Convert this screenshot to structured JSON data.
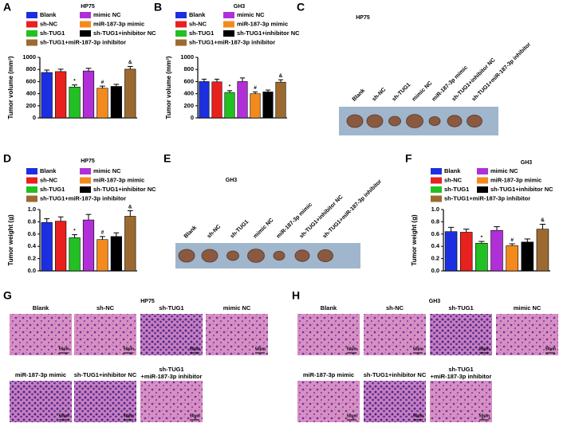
{
  "panels": [
    "A",
    "B",
    "C",
    "D",
    "E",
    "F",
    "G",
    "H"
  ],
  "chart_data": [
    {
      "type": "bar",
      "title": "HP75",
      "y_label": "Tumor volume (mm³)",
      "ylim": [
        0,
        1000
      ],
      "yticks": [
        0,
        200,
        400,
        600,
        800,
        1000
      ],
      "series": [
        {
          "name": "Blank",
          "color": "#1c2fe0",
          "values": [
            750
          ],
          "errors": [
            40
          ]
        },
        {
          "name": "sh-NC",
          "color": "#e8201e",
          "values": [
            765
          ],
          "errors": [
            40
          ]
        },
        {
          "name": "sh-TUG1",
          "color": "#22c022",
          "values": [
            510
          ],
          "errors": [
            35
          ],
          "annotation": "*"
        },
        {
          "name": "mimic NC",
          "color": "#b030d8",
          "values": [
            775
          ],
          "errors": [
            45
          ]
        },
        {
          "name": "miR-187-3p mimic",
          "color": "#f58a1c",
          "values": [
            490
          ],
          "errors": [
            35
          ],
          "annotation": "#"
        },
        {
          "name": "sh-TUG1+inhibitor NC",
          "color": "#000000",
          "values": [
            520
          ],
          "errors": [
            35
          ]
        },
        {
          "name": "sh-TUG1+miR-187-3p inhibitor",
          "color": "#9c6a30",
          "values": [
            805
          ],
          "errors": [
            45
          ],
          "annotation": "&"
        }
      ]
    },
    {
      "type": "bar",
      "title": "GH3",
      "y_label": "Tumor volume (mm³)",
      "ylim": [
        0,
        1000
      ],
      "yticks": [
        0,
        200,
        400,
        600,
        800,
        1000
      ],
      "series": [
        {
          "name": "Blank",
          "color": "#1c2fe0",
          "values": [
            600
          ],
          "errors": [
            40
          ]
        },
        {
          "name": "sh-NC",
          "color": "#e8201e",
          "values": [
            595
          ],
          "errors": [
            45
          ]
        },
        {
          "name": "sh-TUG1",
          "color": "#22c022",
          "values": [
            420
          ],
          "errors": [
            30
          ],
          "annotation": "*"
        },
        {
          "name": "mimic NC",
          "color": "#b030d8",
          "values": [
            600
          ],
          "errors": [
            60
          ]
        },
        {
          "name": "miR-187-3p mimic",
          "color": "#f58a1c",
          "values": [
            400
          ],
          "errors": [
            30
          ],
          "annotation": "#"
        },
        {
          "name": "sh-TUG1+inhibitor NC",
          "color": "#000000",
          "values": [
            430
          ],
          "errors": [
            30
          ]
        },
        {
          "name": "sh-TUG1+miR-187-3p inhibitor",
          "color": "#9c6a30",
          "values": [
            590
          ],
          "errors": [
            40
          ],
          "annotation": "&"
        }
      ]
    },
    {
      "type": "bar",
      "title": "HP75",
      "y_label": "Tumor weight (g)",
      "ylim": [
        0,
        1
      ],
      "yticks": [
        {
          "value": 0,
          "label": "0.0"
        },
        0.2,
        0.4,
        0.6,
        0.8,
        {
          "value": 1,
          "label": "1.0"
        }
      ],
      "series": [
        {
          "name": "Blank",
          "color": "#1c2fe0",
          "values": [
            0.79
          ],
          "errors": [
            0.06
          ]
        },
        {
          "name": "sh-NC",
          "color": "#e8201e",
          "values": [
            0.81
          ],
          "errors": [
            0.07
          ]
        },
        {
          "name": "sh-TUG1",
          "color": "#22c022",
          "values": [
            0.54
          ],
          "errors": [
            0.05
          ],
          "annotation": "*"
        },
        {
          "name": "mimic NC",
          "color": "#b030d8",
          "values": [
            0.83
          ],
          "errors": [
            0.09
          ]
        },
        {
          "name": "miR-187-3p mimic",
          "color": "#f58a1c",
          "values": [
            0.51
          ],
          "errors": [
            0.05
          ],
          "annotation": "#"
        },
        {
          "name": "sh-TUG1+inhibitor NC",
          "color": "#000000",
          "values": [
            0.56
          ],
          "errors": [
            0.06
          ]
        },
        {
          "name": "sh-TUG1+miR-187-3p inhibitor",
          "color": "#9c6a30",
          "values": [
            0.89
          ],
          "errors": [
            0.09
          ],
          "annotation": "&"
        }
      ]
    },
    {
      "type": "bar",
      "title": "GH3",
      "y_label": "Tumor weight (g)",
      "ylim": [
        0,
        1
      ],
      "yticks": [
        {
          "value": 0,
          "label": "0.0"
        },
        0.2,
        0.4,
        0.6,
        0.8,
        {
          "value": 1,
          "label": "1.0"
        }
      ],
      "series": [
        {
          "name": "Blank",
          "color": "#1c2fe0",
          "values": [
            0.64
          ],
          "errors": [
            0.07
          ]
        },
        {
          "name": "sh-NC",
          "color": "#e8201e",
          "values": [
            0.63
          ],
          "errors": [
            0.05
          ]
        },
        {
          "name": "sh-TUG1",
          "color": "#22c022",
          "values": [
            0.45
          ],
          "errors": [
            0.03
          ],
          "annotation": "*"
        },
        {
          "name": "mimic NC",
          "color": "#b030d8",
          "values": [
            0.66
          ],
          "errors": [
            0.06
          ]
        },
        {
          "name": "miR-187-3p mimic",
          "color": "#f58a1c",
          "values": [
            0.41
          ],
          "errors": [
            0.03
          ],
          "annotation": "#"
        },
        {
          "name": "sh-TUG1+inhibitor NC",
          "color": "#000000",
          "values": [
            0.47
          ],
          "errors": [
            0.05
          ]
        },
        {
          "name": "sh-TUG1+miR-187-3p inhibitor",
          "color": "#9c6a30",
          "values": [
            0.68
          ],
          "errors": [
            0.08
          ],
          "annotation": "&"
        }
      ]
    }
  ],
  "photo_c": {
    "title": "HP75",
    "labels": [
      "Blank",
      "sh-NC",
      "sh-TUG1",
      "mimic NC",
      "miR-187-3p mimic",
      "sh-TUG1+inhibitor NC",
      "sh-TUG1+miR-187-3p inhibitor"
    ]
  },
  "photo_e": {
    "title": "GH3",
    "labels": [
      "Blank",
      "sh-NC",
      "sh-TUG1",
      "mimic NC",
      "miR-187-3p mimic",
      "sh-TUG1+inhibitor NC",
      "sh-TUG1+miR-187-3p inhibitor"
    ]
  },
  "histology_g": {
    "title": "HP75",
    "scale_bar": "50μm",
    "labels": [
      "Blank",
      "sh-NC",
      "sh-TUG1",
      "mimic NC",
      "miR-187-3p mimic",
      "sh-TUG1+inhibitor NC",
      [
        "sh-TUG1",
        "+miR-187-3p inhibitor"
      ]
    ]
  },
  "histology_h": {
    "title": "GH3",
    "scale_bar": "50μm",
    "labels": [
      "Blank",
      "sh-NC",
      "sh-TUG1",
      "mimic NC",
      "miR-187-3p mimic",
      "sh-TUG1+inhibitor NC",
      [
        "sh-TUG1",
        "+miR-187-3p inhibitor"
      ]
    ]
  }
}
